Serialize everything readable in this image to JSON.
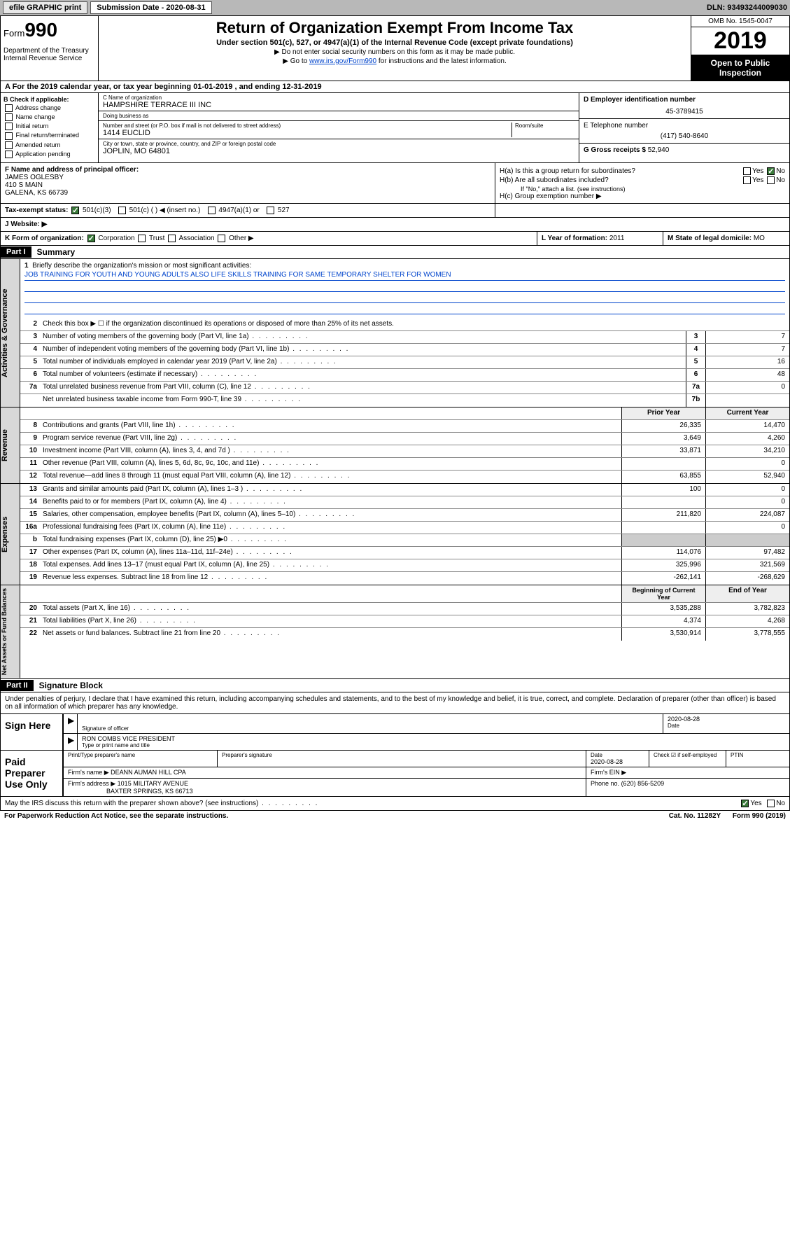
{
  "topbar": {
    "efile": "efile GRAPHIC print",
    "sub_label": "Submission Date - 2020-08-31",
    "dln": "DLN: 93493244009030"
  },
  "header": {
    "form_word": "Form",
    "form_num": "990",
    "dept": "Department of the Treasury\nInternal Revenue Service",
    "title": "Return of Organization Exempt From Income Tax",
    "subtitle": "Under section 501(c), 527, or 4947(a)(1) of the Internal Revenue Code (except private foundations)",
    "note1": "▶ Do not enter social security numbers on this form as it may be made public.",
    "note2_pre": "▶ Go to ",
    "note2_link": "www.irs.gov/Form990",
    "note2_post": " for instructions and the latest information.",
    "omb": "OMB No. 1545-0047",
    "year": "2019",
    "open": "Open to Public Inspection"
  },
  "row_a": "A For the 2019 calendar year, or tax year beginning 01-01-2019   , and ending 12-31-2019",
  "col_b": {
    "title": "B Check if applicable:",
    "items": [
      "Address change",
      "Name change",
      "Initial return",
      "Final return/terminated",
      "Amended return",
      "Application pending"
    ]
  },
  "col_c": {
    "name_lab": "C Name of organization",
    "name": "HAMPSHIRE TERRACE III INC",
    "dba_lab": "Doing business as",
    "dba": "",
    "addr_lab": "Number and street (or P.O. box if mail is not delivered to street address)",
    "room_lab": "Room/suite",
    "addr": "1414 EUCLID",
    "city_lab": "City or town, state or province, country, and ZIP or foreign postal code",
    "city": "JOPLIN, MO  64801"
  },
  "col_d": {
    "lab": "D Employer identification number",
    "val": "45-3789415"
  },
  "col_e": {
    "lab": "E Telephone number",
    "val": "(417) 540-8640"
  },
  "col_g": {
    "lab": "G Gross receipts $",
    "val": "52,940"
  },
  "col_f": {
    "lab": "F  Name and address of principal officer:",
    "name": "JAMES OGLESBY",
    "addr1": "410 S MAIN",
    "addr2": "GALENA, KS  66739"
  },
  "col_h": {
    "ha": "H(a)  Is this a group return for subordinates?",
    "hb": "H(b)  Are all subordinates included?",
    "hb_note": "If \"No,\" attach a list. (see instructions)",
    "hc": "H(c)  Group exemption number ▶"
  },
  "row_i": {
    "lab": "Tax-exempt status:",
    "opts": [
      "501(c)(3)",
      "501(c) (  ) ◀ (insert no.)",
      "4947(a)(1) or",
      "527"
    ]
  },
  "row_j": "J   Website: ▶",
  "row_k": "K Form of organization:",
  "row_k_opts": [
    "Corporation",
    "Trust",
    "Association",
    "Other ▶"
  ],
  "row_l": {
    "lab": "L Year of formation:",
    "val": "2011"
  },
  "row_m": {
    "lab": "M State of legal domicile:",
    "val": "MO"
  },
  "part1": {
    "hdr": "Part I",
    "title": "Summary"
  },
  "summary": {
    "q1": "Briefly describe the organization's mission or most significant activities:",
    "mission": "JOB TRAINING FOR YOUTH AND YOUNG ADULTS ALSO LIFE SKILLS TRAINING FOR SAME TEMPORARY SHELTER FOR WOMEN",
    "q2": "Check this box ▶ ☐  if the organization discontinued its operations or disposed of more than 25% of its net assets.",
    "rows_gov": [
      {
        "n": "3",
        "t": "Number of voting members of the governing body (Part VI, line 1a)",
        "b": "3",
        "v": "7"
      },
      {
        "n": "4",
        "t": "Number of independent voting members of the governing body (Part VI, line 1b)",
        "b": "4",
        "v": "7"
      },
      {
        "n": "5",
        "t": "Total number of individuals employed in calendar year 2019 (Part V, line 2a)",
        "b": "5",
        "v": "16"
      },
      {
        "n": "6",
        "t": "Total number of volunteers (estimate if necessary)",
        "b": "6",
        "v": "48"
      },
      {
        "n": "7a",
        "t": "Total unrelated business revenue from Part VIII, column (C), line 12",
        "b": "7a",
        "v": "0"
      },
      {
        "n": "",
        "t": "Net unrelated business taxable income from Form 990-T, line 39",
        "b": "7b",
        "v": ""
      }
    ],
    "hdr_prior": "Prior Year",
    "hdr_curr": "Current Year",
    "rows_rev": [
      {
        "n": "8",
        "t": "Contributions and grants (Part VIII, line 1h)",
        "p": "26,335",
        "c": "14,470"
      },
      {
        "n": "9",
        "t": "Program service revenue (Part VIII, line 2g)",
        "p": "3,649",
        "c": "4,260"
      },
      {
        "n": "10",
        "t": "Investment income (Part VIII, column (A), lines 3, 4, and 7d )",
        "p": "33,871",
        "c": "34,210"
      },
      {
        "n": "11",
        "t": "Other revenue (Part VIII, column (A), lines 5, 6d, 8c, 9c, 10c, and 11e)",
        "p": "",
        "c": "0"
      },
      {
        "n": "12",
        "t": "Total revenue—add lines 8 through 11 (must equal Part VIII, column (A), line 12)",
        "p": "63,855",
        "c": "52,940"
      }
    ],
    "rows_exp": [
      {
        "n": "13",
        "t": "Grants and similar amounts paid (Part IX, column (A), lines 1–3 )",
        "p": "100",
        "c": "0"
      },
      {
        "n": "14",
        "t": "Benefits paid to or for members (Part IX, column (A), line 4)",
        "p": "",
        "c": "0"
      },
      {
        "n": "15",
        "t": "Salaries, other compensation, employee benefits (Part IX, column (A), lines 5–10)",
        "p": "211,820",
        "c": "224,087"
      },
      {
        "n": "16a",
        "t": "Professional fundraising fees (Part IX, column (A), line 11e)",
        "p": "",
        "c": "0"
      },
      {
        "n": "b",
        "t": "Total fundraising expenses (Part IX, column (D), line 25) ▶0",
        "p": "",
        "c": "",
        "grey": true
      },
      {
        "n": "17",
        "t": "Other expenses (Part IX, column (A), lines 11a–11d, 11f–24e)",
        "p": "114,076",
        "c": "97,482"
      },
      {
        "n": "18",
        "t": "Total expenses. Add lines 13–17 (must equal Part IX, column (A), line 25)",
        "p": "325,996",
        "c": "321,569"
      },
      {
        "n": "19",
        "t": "Revenue less expenses. Subtract line 18 from line 12",
        "p": "-262,141",
        "c": "-268,629"
      }
    ],
    "hdr_beg": "Beginning of Current Year",
    "hdr_end": "End of Year",
    "rows_net": [
      {
        "n": "20",
        "t": "Total assets (Part X, line 16)",
        "p": "3,535,288",
        "c": "3,782,823"
      },
      {
        "n": "21",
        "t": "Total liabilities (Part X, line 26)",
        "p": "4,374",
        "c": "4,268"
      },
      {
        "n": "22",
        "t": "Net assets or fund balances. Subtract line 21 from line 20",
        "p": "3,530,914",
        "c": "3,778,555"
      }
    ],
    "vtabs": {
      "gov": "Activities & Governance",
      "rev": "Revenue",
      "exp": "Expenses",
      "net": "Net Assets or Fund Balances"
    }
  },
  "part2": {
    "hdr": "Part II",
    "title": "Signature Block"
  },
  "perjury": "Under penalties of perjury, I declare that I have examined this return, including accompanying schedules and statements, and to the best of my knowledge and belief, it is true, correct, and complete. Declaration of preparer (other than officer) is based on all information of which preparer has any knowledge.",
  "sign": {
    "here": "Sign Here",
    "sig_lab": "Signature of officer",
    "date": "2020-08-28",
    "date_lab": "Date",
    "name": "RON COMBS VICE PRESIDENT",
    "name_lab": "Type or print name and title"
  },
  "paid": {
    "left": "Paid Preparer Use Only",
    "h1": "Print/Type preparer's name",
    "h2": "Preparer's signature",
    "h3": "Date",
    "h3v": "2020-08-28",
    "h4": "Check ☑ if self-employed",
    "h5": "PTIN",
    "firm_lab": "Firm's name    ▶",
    "firm": "DEANN AUMAN HILL CPA",
    "ein_lab": "Firm's EIN ▶",
    "addr_lab": "Firm's address ▶",
    "addr1": "1015 MILITARY AVENUE",
    "addr2": "BAXTER SPRINGS, KS  66713",
    "phone_lab": "Phone no.",
    "phone": "(620) 856-5209"
  },
  "discuss": "May the IRS discuss this return with the preparer shown above? (see instructions)",
  "bottom": {
    "left": "For Paperwork Reduction Act Notice, see the separate instructions.",
    "mid": "Cat. No. 11282Y",
    "right": "Form 990 (2019)"
  }
}
